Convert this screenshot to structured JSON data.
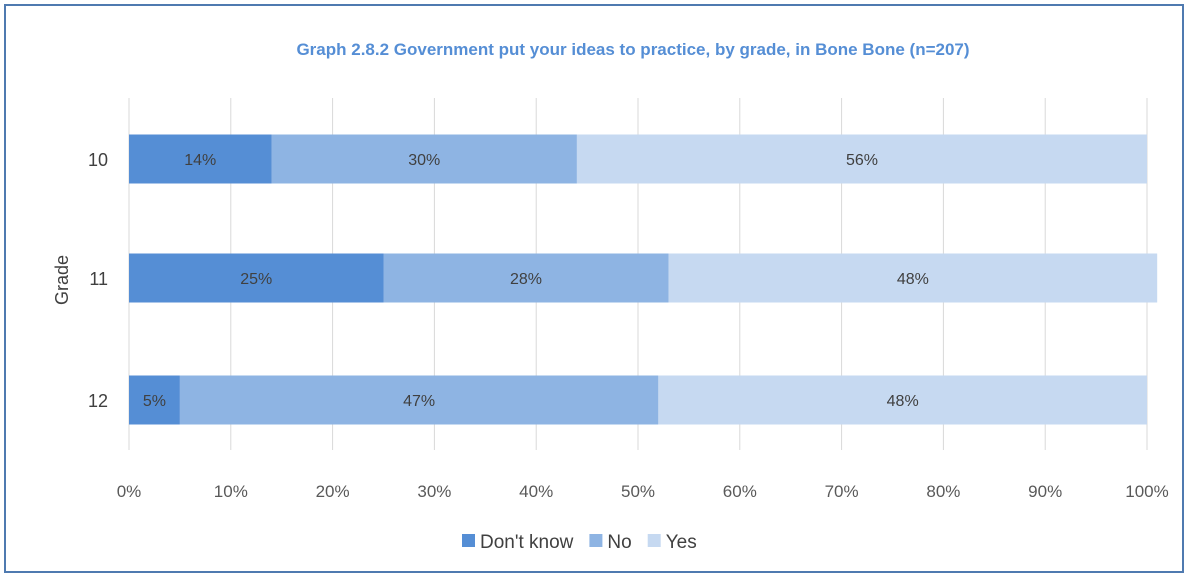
{
  "chart_data": {
    "type": "bar",
    "orientation": "horizontal",
    "stacked": true,
    "title": "Graph 2.8.2 Government put your ideas to practice, by grade, in Bone Bone (n=207)",
    "xlabel": "",
    "ylabel": "Grade",
    "categories": [
      "10",
      "11",
      "12"
    ],
    "series": [
      {
        "name": "Don't know",
        "color": "#558ed5",
        "values": [
          14,
          25,
          5
        ],
        "labels": [
          "14%",
          "25%",
          "5%"
        ]
      },
      {
        "name": "No",
        "color": "#8eb4e3",
        "values": [
          30,
          28,
          47
        ],
        "labels": [
          "30%",
          "28%",
          "47%"
        ]
      },
      {
        "name": "Yes",
        "color": "#c6d9f1",
        "values": [
          56,
          48,
          48
        ],
        "labels": [
          "56%",
          "48%",
          "48%"
        ]
      }
    ],
    "xlim": [
      0,
      100
    ],
    "xticks": [
      "0%",
      "10%",
      "20%",
      "30%",
      "40%",
      "50%",
      "60%",
      "70%",
      "80%",
      "90%",
      "100%"
    ],
    "grid": "vertical",
    "legend": "bottom",
    "title_color": "#558ed5"
  }
}
